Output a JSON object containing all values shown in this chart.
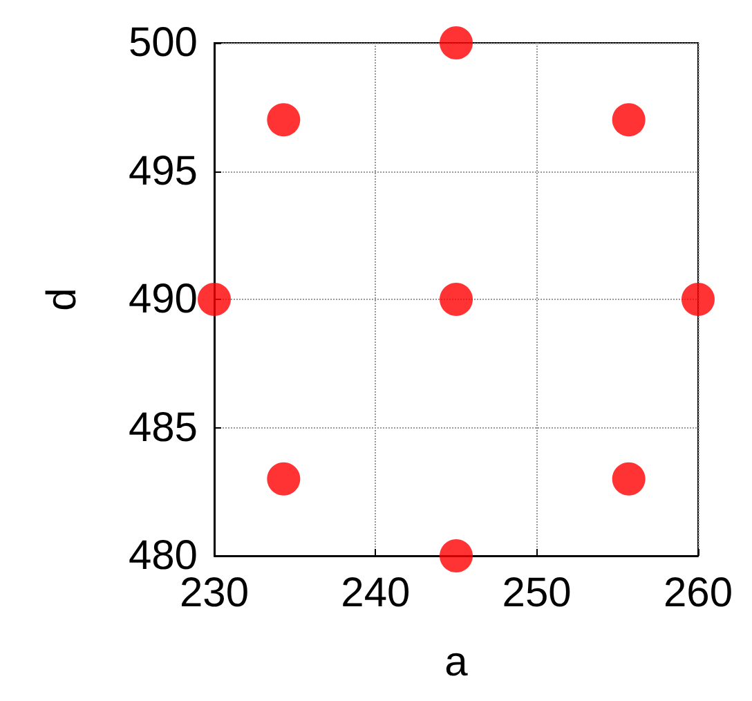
{
  "chart_data": {
    "type": "scatter",
    "xlabel": "a",
    "ylabel": "d",
    "x": [
      230,
      234.3,
      245,
      255.7,
      260,
      255.7,
      245,
      234.3,
      245
    ],
    "series": [
      {
        "color": "#ff0000",
        "values": [
          490,
          497,
          500,
          497,
          490,
          483,
          480,
          483,
          490
        ]
      }
    ],
    "xlim": [
      230,
      260
    ],
    "xticks": [
      230,
      240,
      250,
      260
    ],
    "ylim": [
      480,
      500
    ],
    "yticks": [
      480,
      485,
      490,
      495,
      500
    ],
    "grid": true,
    "marker": "circle"
  }
}
